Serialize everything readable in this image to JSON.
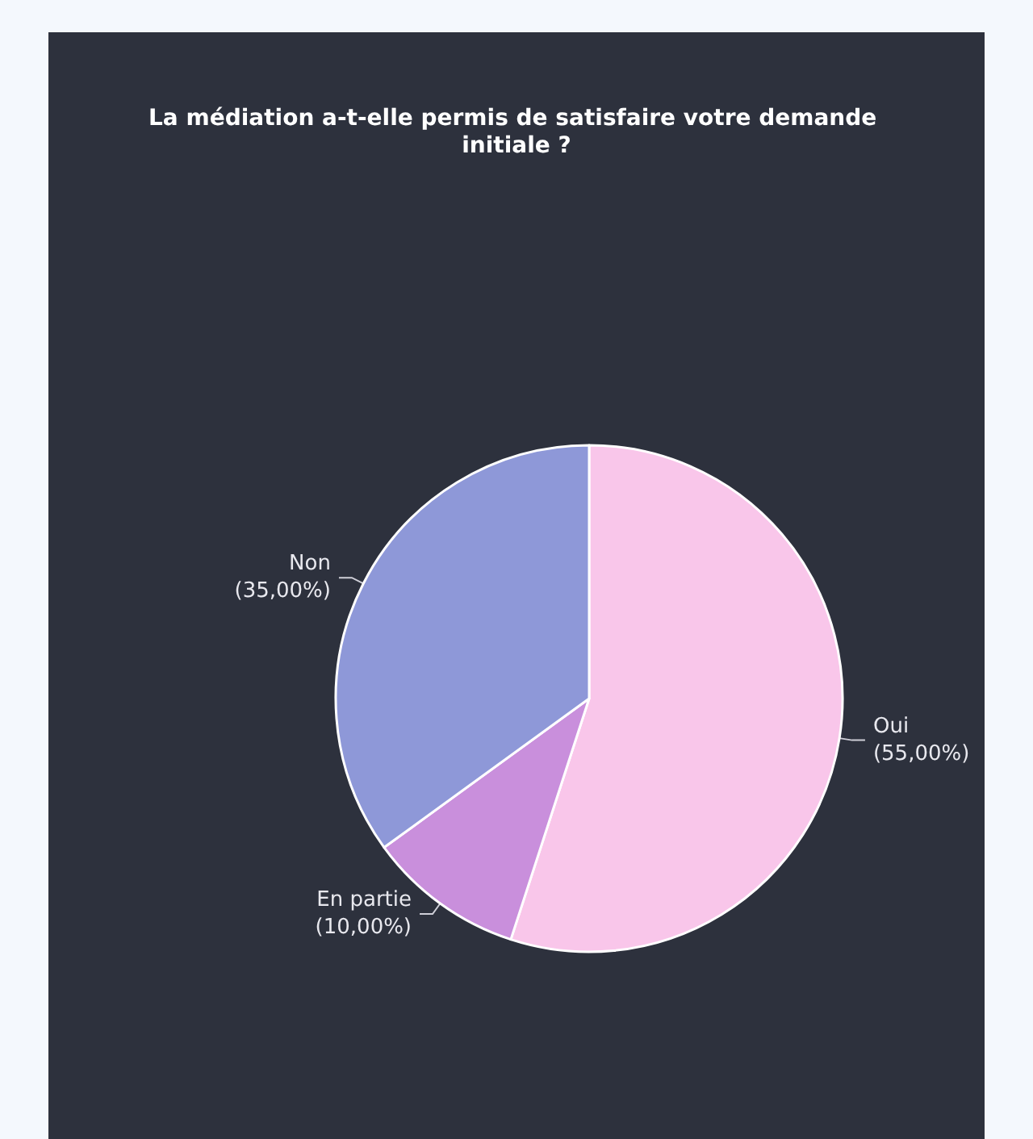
{
  "chart_data": {
    "type": "pie",
    "title": "La médiation a-t-elle permis de satisfaire votre demande initiale ?",
    "categories": [
      "Oui",
      "En partie",
      "Non"
    ],
    "values": [
      55,
      10,
      35
    ],
    "colors": [
      "#f9c6ea",
      "#c98fdc",
      "#8e98d8"
    ],
    "value_labels": [
      "(55,00%)",
      "(10,00%)",
      "(35,00%)"
    ]
  }
}
